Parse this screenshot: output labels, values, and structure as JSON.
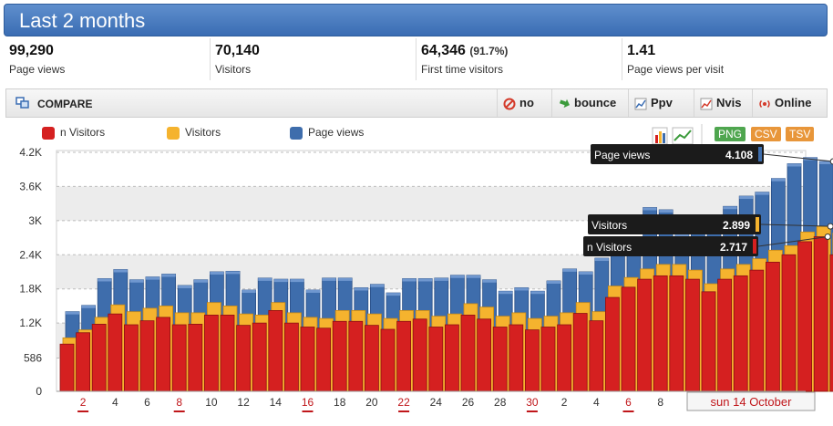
{
  "header": {
    "title": "Last 2 months"
  },
  "stats": [
    {
      "value": "99,290",
      "extra": "",
      "label": "Page views"
    },
    {
      "value": "70,140",
      "extra": "",
      "label": "Visitors"
    },
    {
      "value": "64,346",
      "extra": "(91.7%)",
      "label": "First time visitors"
    },
    {
      "value": "1.41",
      "extra": "",
      "label": "Page views per visit"
    }
  ],
  "toolbar": {
    "compare_label": "COMPARE",
    "buttons": [
      {
        "label": "no",
        "icon": "no-entry-icon"
      },
      {
        "label": "bounce",
        "icon": "bounce-arrow-icon"
      },
      {
        "label": "Ppv",
        "icon": "chart-icon"
      },
      {
        "label": "Nvis",
        "icon": "chart-icon"
      },
      {
        "label": "Online",
        "icon": "broadcast-icon"
      }
    ]
  },
  "export": {
    "png": "PNG",
    "csv": "CSV",
    "tsv": "TSV"
  },
  "colors": {
    "new_visitors": "#d52020",
    "visitors": "#f5b32e",
    "page_views": "#3e6dac",
    "title_bar": "#4a7cc0"
  },
  "chart_data": {
    "type": "bar",
    "series": [
      {
        "name": "n Visitors",
        "values": [
          830,
          1030,
          1180,
          1360,
          1170,
          1240,
          1300,
          1170,
          1180,
          1340,
          1340,
          1160,
          1200,
          1420,
          1200,
          1130,
          1110,
          1230,
          1230,
          1160,
          1090,
          1230,
          1270,
          1130,
          1170,
          1340,
          1270,
          1130,
          1170,
          1080,
          1130,
          1170,
          1370,
          1240,
          1650,
          1830,
          1970,
          2030,
          2030,
          1970,
          1750,
          1970,
          2030,
          2130,
          2270,
          2400,
          2630,
          2717,
          2400,
          0
        ]
      },
      {
        "name": "Visitors",
        "values": [
          940,
          1080,
          1300,
          1520,
          1400,
          1460,
          1500,
          1380,
          1380,
          1560,
          1500,
          1360,
          1340,
          1560,
          1380,
          1300,
          1280,
          1420,
          1420,
          1360,
          1280,
          1420,
          1420,
          1320,
          1360,
          1540,
          1480,
          1320,
          1380,
          1280,
          1320,
          1380,
          1560,
          1400,
          1850,
          2000,
          2150,
          2230,
          2230,
          2130,
          1890,
          2150,
          2230,
          2330,
          2480,
          2560,
          2800,
          2899,
          2780,
          60
        ]
      },
      {
        "name": "Page views",
        "values": [
          1400,
          1510,
          1980,
          2140,
          1960,
          2010,
          2060,
          1860,
          1960,
          2100,
          2110,
          1780,
          1990,
          1970,
          1970,
          1780,
          1990,
          1990,
          1820,
          1880,
          1730,
          1980,
          1980,
          1990,
          2040,
          2040,
          1960,
          1760,
          1820,
          1760,
          1940,
          2150,
          2100,
          2340,
          2460,
          2530,
          3230,
          3190,
          2770,
          3040,
          3080,
          3250,
          3430,
          3500,
          3740,
          4000,
          4108,
          4040,
          4050,
          100
        ]
      }
    ],
    "x_ticks": [
      "2",
      "4",
      "6",
      "8",
      "10",
      "12",
      "14",
      "16",
      "18",
      "20",
      "22",
      "24",
      "26",
      "28",
      "30",
      "2",
      "4",
      "6",
      "8"
    ],
    "x_tick_weekend": [
      true,
      false,
      false,
      true,
      false,
      false,
      false,
      true,
      false,
      false,
      true,
      false,
      false,
      false,
      true,
      false,
      false,
      true,
      false
    ],
    "selected_date": "sun 14 October",
    "y_ticks": [
      "0",
      "586",
      "1.2K",
      "1.8K",
      "2.4K",
      "3K",
      "3.6K",
      "4.2K"
    ],
    "y_tick_values": [
      0,
      586,
      1200,
      1800,
      2400,
      3000,
      3600,
      4200
    ],
    "ylim": [
      0,
      4200
    ],
    "legend_position": "top-left",
    "grid": true,
    "tooltips": [
      {
        "label": "Page views",
        "value": "4.108",
        "series": "Page views"
      },
      {
        "label": "Visitors",
        "value": "2.899",
        "series": "Visitors"
      },
      {
        "label": "n Visitors",
        "value": "2.717",
        "series": "n Visitors"
      }
    ]
  }
}
